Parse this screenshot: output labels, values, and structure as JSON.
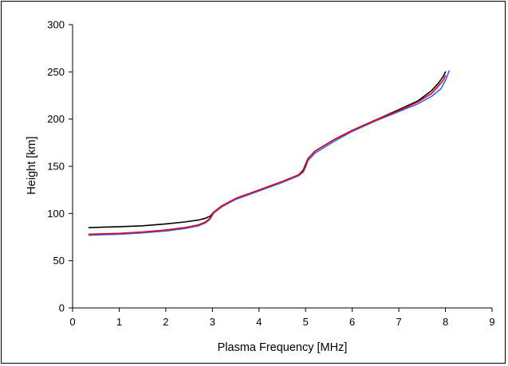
{
  "chart_data": {
    "type": "line",
    "title": "",
    "xlabel": "Plasma Frequency  [MHz]",
    "ylabel": "Height  [km]",
    "xlim": [
      0,
      9
    ],
    "ylim": [
      0,
      300
    ],
    "xticks": [
      0,
      1,
      2,
      3,
      4,
      5,
      6,
      7,
      8,
      9
    ],
    "yticks": [
      0,
      50,
      100,
      150,
      200,
      250,
      300
    ],
    "grid": false,
    "legend": "none",
    "series": [
      {
        "color": "#000000",
        "x": [
          0.35,
          1.0,
          1.5,
          2.0,
          2.4,
          2.7,
          2.85,
          2.95,
          3.02,
          3.2,
          3.5,
          4.0,
          4.5,
          4.85,
          4.95,
          5.0,
          5.05,
          5.2,
          5.6,
          6.0,
          6.5,
          7.0,
          7.4,
          7.7,
          7.85,
          7.95,
          8.0
        ],
        "y": [
          85,
          86,
          87,
          89,
          91,
          93,
          95,
          97,
          101,
          108,
          115,
          124,
          133,
          141,
          146,
          152,
          158,
          166,
          178,
          188,
          199,
          210,
          219,
          230,
          238,
          245,
          250
        ]
      },
      {
        "color": "#3366ff",
        "x": [
          0.35,
          1.0,
          1.5,
          2.0,
          2.4,
          2.7,
          2.85,
          2.95,
          3.02,
          3.2,
          3.5,
          4.0,
          4.5,
          4.85,
          4.95,
          5.0,
          5.05,
          5.2,
          5.6,
          6.0,
          6.5,
          7.0,
          7.4,
          7.7,
          7.9,
          8.0,
          8.08
        ],
        "y": [
          77,
          78,
          79.5,
          81.5,
          84,
          87,
          90,
          94,
          100,
          107,
          115,
          124,
          133,
          140,
          144,
          149,
          156,
          164,
          176,
          187,
          198,
          208,
          216,
          224,
          232,
          241,
          251
        ]
      },
      {
        "color": "#e0001b",
        "x": [
          0.35,
          1.0,
          1.5,
          2.0,
          2.4,
          2.7,
          2.85,
          2.95,
          3.02,
          3.2,
          3.5,
          4.0,
          4.5,
          4.85,
          4.95,
          5.0,
          5.05,
          5.2,
          5.6,
          6.0,
          6.5,
          7.0,
          7.4,
          7.7,
          7.85,
          7.95,
          8.0
        ],
        "y": [
          78,
          79,
          80.5,
          82.5,
          85,
          88,
          91,
          95,
          101,
          108,
          116,
          125,
          134,
          141,
          145,
          151,
          158,
          166,
          178,
          188,
          199,
          209,
          218,
          227,
          235,
          241,
          246
        ]
      }
    ]
  }
}
